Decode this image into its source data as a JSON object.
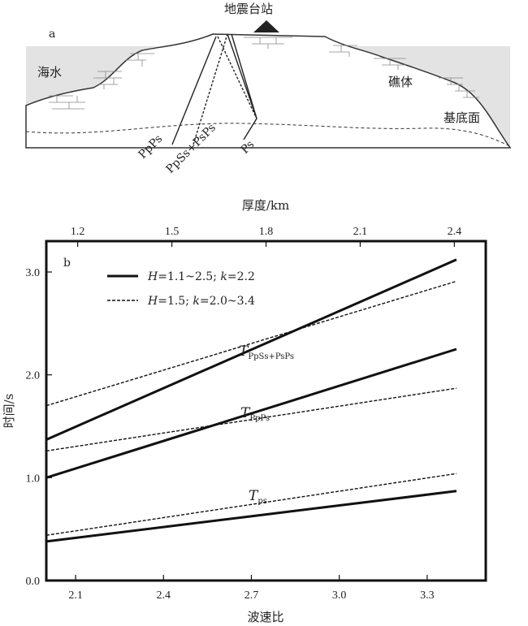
{
  "panel_a": {
    "panel_label": "a",
    "station_label": "地震台站",
    "sea_label": "海水",
    "reef_label": "礁体",
    "basement_label": "基底面",
    "ray_labels": [
      "PpPs",
      "PpSs+PsPs",
      "Ps"
    ]
  },
  "chart_data": {
    "type": "line",
    "panel_label": "b",
    "xlabel": "波速比",
    "ylabel": "时间/s",
    "top_xlabel": "厚度/km",
    "xlim": [
      2.0,
      3.5
    ],
    "ylim": [
      0.0,
      3.3
    ],
    "top_xlim": [
      1.1,
      2.5
    ],
    "xticks": [
      "2.1",
      "2.4",
      "2.7",
      "3.0",
      "3.3"
    ],
    "top_xticks": [
      "1.2",
      "1.5",
      "1.8",
      "2.1",
      "2.4"
    ],
    "yticks": [
      "0.0",
      "1.0",
      "2.0",
      "3.0"
    ],
    "legend": [
      {
        "style": "solid",
        "italic1": "H",
        "text1": "=1.1~2.5; ",
        "italic2": "k",
        "text2": "=2.2"
      },
      {
        "style": "dashed",
        "italic1": "H",
        "text1": "=1.5; ",
        "italic2": "k",
        "text2": "=2.0~3.4"
      }
    ],
    "series": [
      {
        "phase": "PpSs+PsPs",
        "style": "solid",
        "x": [
          2.0,
          3.4
        ],
        "y": [
          1.37,
          3.12
        ]
      },
      {
        "phase": "PpSs+PsPs",
        "style": "dashed",
        "x": [
          2.0,
          3.4
        ],
        "y": [
          1.7,
          2.91
        ]
      },
      {
        "phase": "PpPs",
        "style": "solid",
        "x": [
          2.0,
          3.4
        ],
        "y": [
          1.0,
          2.25
        ]
      },
      {
        "phase": "PpPs",
        "style": "dashed",
        "x": [
          2.0,
          3.4
        ],
        "y": [
          1.26,
          1.87
        ]
      },
      {
        "phase": "Ps",
        "style": "solid",
        "x": [
          2.0,
          3.4
        ],
        "y": [
          0.38,
          0.87
        ]
      },
      {
        "phase": "Ps",
        "style": "dashed",
        "x": [
          2.0,
          3.4
        ],
        "y": [
          0.44,
          1.04
        ]
      }
    ],
    "annotations": [
      {
        "main": "T",
        "sub": "PpSs+PsPs"
      },
      {
        "main": "T",
        "sub": "PpPs"
      },
      {
        "main": "T",
        "sub": "ps"
      }
    ]
  }
}
